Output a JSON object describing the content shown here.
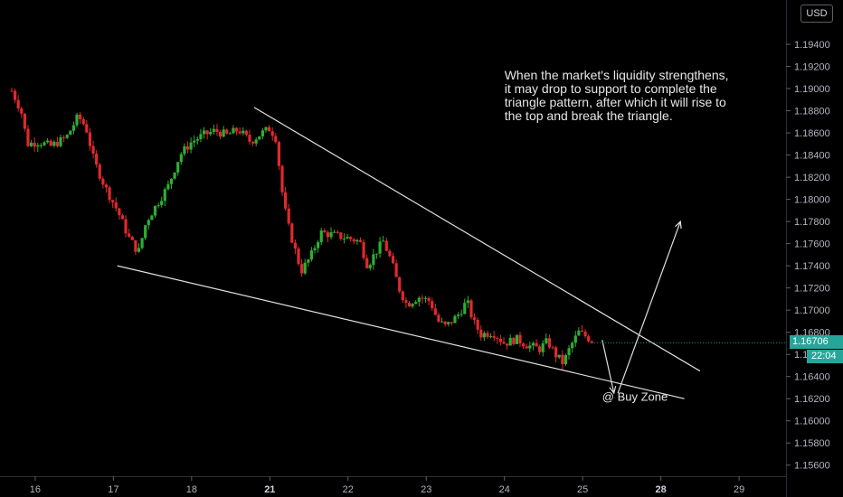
{
  "chart_data": {
    "type": "candlestick",
    "currency": "USD",
    "last_price": "1.16706",
    "countdown": "22:04",
    "price_axis": {
      "min": 1.155,
      "max": 1.198,
      "ticks": [
        "1.19400",
        "1.19200",
        "1.19000",
        "1.18800",
        "1.18600",
        "1.18400",
        "1.18200",
        "1.18000",
        "1.17800",
        "1.17600",
        "1.17400",
        "1.17200",
        "1.17000",
        "1.16800",
        "1.16600",
        "1.16400",
        "1.16200",
        "1.16000",
        "1.15800",
        "1.15600"
      ]
    },
    "time_axis": {
      "ticks": [
        {
          "label": "16",
          "pos": 0.3
        },
        {
          "label": "17",
          "pos": 1.3
        },
        {
          "label": "18",
          "pos": 2.3
        },
        {
          "label": "21",
          "pos": 3.3,
          "bold": true
        },
        {
          "label": "22",
          "pos": 4.3
        },
        {
          "label": "23",
          "pos": 5.3
        },
        {
          "label": "24",
          "pos": 6.3
        },
        {
          "label": "25",
          "pos": 7.3
        },
        {
          "label": "28",
          "pos": 8.3,
          "bold": true
        },
        {
          "label": "29",
          "pos": 9.3
        }
      ],
      "range": [
        -0.15,
        9.9
      ]
    },
    "price_path": [
      [
        0.0,
        1.1898
      ],
      [
        0.12,
        1.188
      ],
      [
        0.2,
        1.185
      ],
      [
        0.35,
        1.1852
      ],
      [
        0.5,
        1.1848
      ],
      [
        0.7,
        1.1856
      ],
      [
        0.85,
        1.1875
      ],
      [
        0.95,
        1.1865
      ],
      [
        1.05,
        1.1835
      ],
      [
        1.2,
        1.181
      ],
      [
        1.35,
        1.179
      ],
      [
        1.5,
        1.1765
      ],
      [
        1.62,
        1.1752
      ],
      [
        1.72,
        1.178
      ],
      [
        1.85,
        1.1795
      ],
      [
        2.0,
        1.1812
      ],
      [
        2.15,
        1.184
      ],
      [
        2.3,
        1.1852
      ],
      [
        2.45,
        1.1858
      ],
      [
        2.6,
        1.1862
      ],
      [
        2.75,
        1.1858
      ],
      [
        2.9,
        1.1863
      ],
      [
        3.05,
        1.1852
      ],
      [
        3.2,
        1.186
      ],
      [
        3.3,
        1.1864
      ],
      [
        3.38,
        1.1855
      ],
      [
        3.45,
        1.181
      ],
      [
        3.52,
        1.178
      ],
      [
        3.6,
        1.176
      ],
      [
        3.7,
        1.1735
      ],
      [
        3.82,
        1.1748
      ],
      [
        3.95,
        1.177
      ],
      [
        4.1,
        1.1768
      ],
      [
        4.3,
        1.1765
      ],
      [
        4.45,
        1.1762
      ],
      [
        4.55,
        1.174
      ],
      [
        4.65,
        1.1752
      ],
      [
        4.75,
        1.1762
      ],
      [
        4.85,
        1.1745
      ],
      [
        4.95,
        1.172
      ],
      [
        5.05,
        1.1705
      ],
      [
        5.2,
        1.1712
      ],
      [
        5.35,
        1.1708
      ],
      [
        5.45,
        1.169
      ],
      [
        5.55,
        1.1685
      ],
      [
        5.7,
        1.1695
      ],
      [
        5.82,
        1.1708
      ],
      [
        5.9,
        1.169
      ],
      [
        6.0,
        1.1678
      ],
      [
        6.15,
        1.168
      ],
      [
        6.3,
        1.167
      ],
      [
        6.45,
        1.1674
      ],
      [
        6.6,
        1.1668
      ],
      [
        6.75,
        1.1665
      ],
      [
        6.85,
        1.1672
      ],
      [
        6.95,
        1.166
      ],
      [
        7.05,
        1.1652
      ],
      [
        7.15,
        1.1668
      ],
      [
        7.25,
        1.168
      ],
      [
        7.35,
        1.1676
      ],
      [
        7.45,
        1.16706
      ]
    ],
    "trendlines": [
      {
        "from": [
          3.1,
          1.1883
        ],
        "to": [
          8.8,
          1.1645
        ]
      },
      {
        "from": [
          1.35,
          1.174
        ],
        "to": [
          8.6,
          1.162
        ]
      }
    ],
    "arrows": [
      {
        "from": [
          7.55,
          1.1673
        ],
        "to": [
          7.7,
          1.1625
        ]
      },
      {
        "from": [
          7.75,
          1.1625
        ],
        "to": [
          8.55,
          1.178
        ]
      }
    ],
    "annotation": [
      "When the market's liquidity strengthens,",
      "it may drop to support to complete the",
      "triangle pattern, after which it will rise to",
      "the top and break the triangle."
    ],
    "annotation_pos": [
      6.3,
      1.1908
    ],
    "label": "@ Buy Zone",
    "label_pos": [
      7.55,
      1.1618
    ],
    "colors": {
      "up": "#2eae34",
      "down": "#e0292f",
      "line": "#e0e0e0",
      "badge": "#26a69a",
      "axis_text": "#b2b5be",
      "background": "#000000"
    }
  }
}
